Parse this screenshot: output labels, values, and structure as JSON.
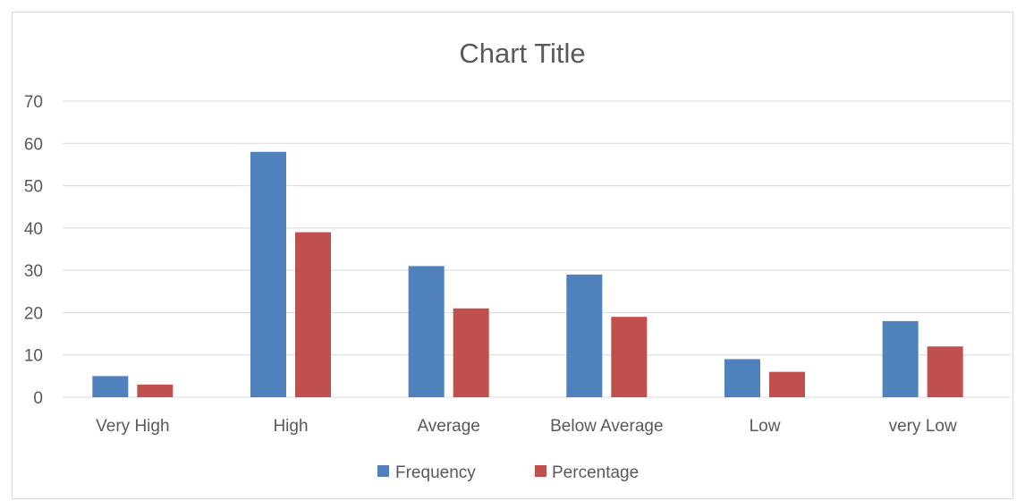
{
  "chart_data": {
    "type": "bar",
    "title": "Chart Title",
    "categories": [
      "Very High",
      "High",
      "Average",
      "Below Average",
      "Low",
      "very Low"
    ],
    "series": [
      {
        "name": "Frequency",
        "values": [
          5,
          58,
          31,
          29,
          9,
          18
        ],
        "color": "#4f81bd"
      },
      {
        "name": "Percentage",
        "values": [
          3,
          39,
          21,
          19,
          6,
          12
        ],
        "color": "#c0504d"
      }
    ],
    "ylim": [
      0,
      70
    ],
    "yticks": [
      "0",
      "10",
      "20",
      "30",
      "40",
      "50",
      "60",
      "70"
    ],
    "grid": true,
    "legend_position": "bottom"
  }
}
